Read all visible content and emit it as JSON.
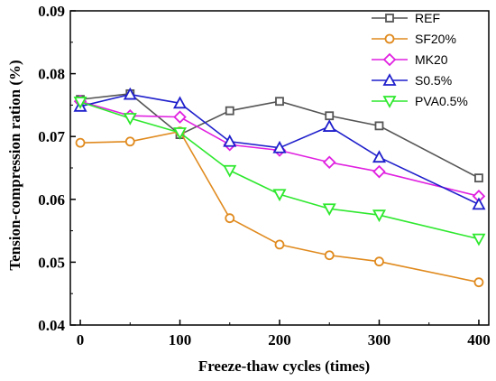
{
  "chart_data": {
    "type": "line",
    "xlabel": "Freeze-thaw cycles (times)",
    "ylabel": "Tension-compression ration (%)",
    "xlim": [
      -10,
      410
    ],
    "ylim": [
      0.04,
      0.09
    ],
    "x_ticks": [
      0,
      100,
      200,
      300,
      400
    ],
    "y_ticks": [
      0.04,
      0.05,
      0.06,
      0.07,
      0.08,
      0.09
    ],
    "x_tick_labels": [
      "0",
      "100",
      "200",
      "300",
      "400"
    ],
    "y_tick_labels": [
      "0.04",
      "0.05",
      "0.06",
      "0.07",
      "0.08",
      "0.09"
    ],
    "grid": false,
    "legend_position": "top-right",
    "x": [
      0,
      50,
      100,
      150,
      200,
      250,
      300,
      400
    ],
    "series": [
      {
        "name": "REF",
        "color": "#555555",
        "marker": "square",
        "values": [
          0.0759,
          0.0768,
          0.0703,
          0.0741,
          0.0756,
          0.0733,
          0.0717,
          0.0634
        ]
      },
      {
        "name": "SF20%",
        "color": "#e08a1e",
        "marker": "circle",
        "values": [
          0.069,
          0.0692,
          0.0708,
          0.057,
          0.0528,
          0.0511,
          0.0501,
          0.0468
        ]
      },
      {
        "name": "MK20",
        "color": "#e020e0",
        "marker": "diamond",
        "values": [
          0.0756,
          0.0733,
          0.0731,
          0.0687,
          0.0678,
          0.0659,
          0.0644,
          0.0605
        ]
      },
      {
        "name": "S0.5%",
        "color": "#1f1fcc",
        "marker": "triangle-up",
        "values": [
          0.0748,
          0.0767,
          0.0753,
          0.0692,
          0.0682,
          0.0716,
          0.0667,
          0.0592
        ]
      },
      {
        "name": "PVA0.5%",
        "color": "#2ee82e",
        "marker": "triangle-down",
        "values": [
          0.0755,
          0.0729,
          0.0706,
          0.0646,
          0.0608,
          0.0585,
          0.0575,
          0.0537
        ]
      }
    ]
  }
}
